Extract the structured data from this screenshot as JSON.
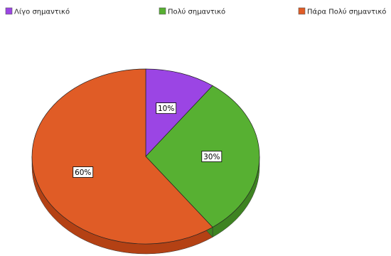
{
  "chart_data": {
    "type": "pie",
    "style": "3d",
    "title": "",
    "legend_position": "top",
    "slices": [
      {
        "label": "Λίγο σημαντικό",
        "value": 10,
        "value_label": "10%",
        "color": "#9b45e4",
        "side_color": "#6f2ea6"
      },
      {
        "label": "Πολύ σημαντικό",
        "value": 30,
        "value_label": "30%",
        "color": "#57b032",
        "side_color": "#3e8322"
      },
      {
        "label": "Πάρα Πολύ σημαντικό",
        "value": 60,
        "value_label": "60%",
        "color": "#e05c26",
        "side_color": "#b44114"
      }
    ]
  }
}
